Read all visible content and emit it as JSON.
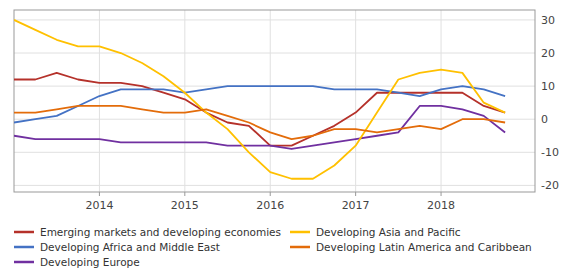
{
  "chart_data": {
    "type": "line",
    "x": [
      2013.0,
      2013.25,
      2013.5,
      2013.75,
      2014.0,
      2014.25,
      2014.5,
      2014.75,
      2015.0,
      2015.25,
      2015.5,
      2015.75,
      2016.0,
      2016.25,
      2016.5,
      2016.75,
      2017.0,
      2017.25,
      2017.5,
      2017.75,
      2018.0,
      2018.25,
      2018.5,
      2018.75
    ],
    "series": [
      {
        "name": "Emerging markets and developing economies",
        "color": "#b5312a",
        "values": [
          12,
          12,
          14,
          12,
          11,
          11,
          10,
          8,
          6,
          2,
          -1,
          -2,
          -8,
          -8,
          -5,
          -2,
          2,
          8,
          8,
          8,
          8,
          8,
          4,
          2
        ]
      },
      {
        "name": "Developing Africa and Middle East",
        "color": "#4472c4",
        "values": [
          -1,
          0,
          1,
          4,
          7,
          9,
          9,
          9,
          8,
          9,
          10,
          10,
          10,
          10,
          10,
          9,
          9,
          9,
          8,
          7,
          9,
          10,
          9,
          7
        ]
      },
      {
        "name": "Developing Europe",
        "color": "#7030a0",
        "values": [
          -5,
          -6,
          -6,
          -6,
          -6,
          -7,
          -7,
          -7,
          -7,
          -7,
          -8,
          -8,
          -8,
          -9,
          -8,
          -7,
          -6,
          -5,
          -4,
          4,
          4,
          3,
          1,
          -4
        ]
      },
      {
        "name": "Developing Asia and Pacific",
        "color": "#ffc000",
        "values": [
          30,
          27,
          24,
          22,
          22,
          20,
          17,
          13,
          8,
          2,
          -3,
          -10,
          -16,
          -18,
          -18,
          -14,
          -8,
          2,
          12,
          14,
          15,
          14,
          5,
          2
        ]
      },
      {
        "name": "Developing Latin America and Caribbean",
        "color": "#e36c0a",
        "values": [
          2,
          2,
          3,
          4,
          4,
          4,
          3,
          2,
          2,
          3,
          1,
          -1,
          -4,
          -6,
          -5,
          -3,
          -3,
          -4,
          -3,
          -2,
          -3,
          0,
          0,
          -1
        ]
      }
    ],
    "xlim": [
      2013.0,
      2019.1
    ],
    "xticks": [
      2014,
      2015,
      2016,
      2017,
      2018
    ],
    "ylim": [
      -22,
      33
    ],
    "yticks": [
      -20,
      -10,
      0,
      10,
      20,
      30
    ],
    "grid": true,
    "legend": "bottom"
  }
}
